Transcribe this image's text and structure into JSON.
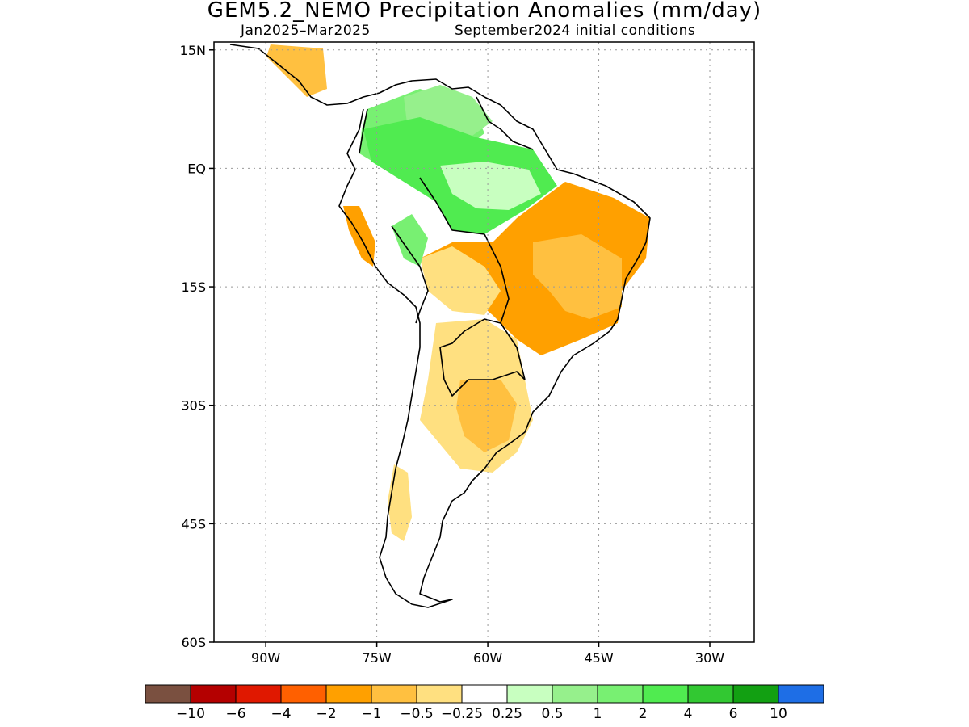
{
  "title": "GEM5.2_NEMO Precipitation Anomalies (mm/day)",
  "subtitle_period": "Jan2025–Mar2025",
  "subtitle_init": "September2024 initial conditions",
  "map": {
    "lon_range": [
      -97,
      -24
    ],
    "lat_range": [
      -60,
      16
    ],
    "lat_ticks": [
      {
        "value": 15,
        "label": "15N"
      },
      {
        "value": 0,
        "label": "EQ"
      },
      {
        "value": -15,
        "label": "15S"
      },
      {
        "value": -30,
        "label": "30S"
      },
      {
        "value": -45,
        "label": "45S"
      },
      {
        "value": -60,
        "label": "60S"
      }
    ],
    "lon_ticks": [
      {
        "value": -90,
        "label": "90W"
      },
      {
        "value": -75,
        "label": "75W"
      },
      {
        "value": -60,
        "label": "60W"
      },
      {
        "value": -45,
        "label": "45W"
      },
      {
        "value": -30,
        "label": "30W"
      }
    ],
    "grid": "dotted"
  },
  "colorbar": {
    "colors": [
      "#7a5040",
      "#b40000",
      "#e01800",
      "#ff6000",
      "#ffa000",
      "#ffc040",
      "#ffe080",
      "#ffffff",
      "#c8ffc0",
      "#96f08c",
      "#78f072",
      "#50eb50",
      "#32c832",
      "#12a012",
      "#1e6ee6"
    ],
    "labels": [
      "−10",
      "−6",
      "−4",
      "−2",
      "−1",
      "−0.5",
      "−0.25",
      "0.25",
      "0.5",
      "1",
      "2",
      "4",
      "6",
      "10"
    ]
  },
  "anomaly_regions": [
    {
      "category": 10,
      "region": "northern South America / Colombia–Venezuela"
    },
    {
      "category": 9,
      "region": "northern Amazon"
    },
    {
      "category": 11,
      "region": "central Amazon"
    },
    {
      "category": 8,
      "region": "Venezuela / Guianas"
    },
    {
      "category": 5,
      "region": "northeast Brazil"
    },
    {
      "category": 4,
      "region": "central-east Brazil"
    },
    {
      "category": 5,
      "region": "southern Amazon / Bolivia"
    },
    {
      "category": 6,
      "region": "southern Brazil / Paraguay"
    },
    {
      "category": 6,
      "region": "northern Argentina"
    },
    {
      "category": 5,
      "region": "central Argentina / Uruguay"
    },
    {
      "category": 4,
      "region": "Peru coast"
    },
    {
      "category": 6,
      "region": "southern Chile"
    }
  ]
}
